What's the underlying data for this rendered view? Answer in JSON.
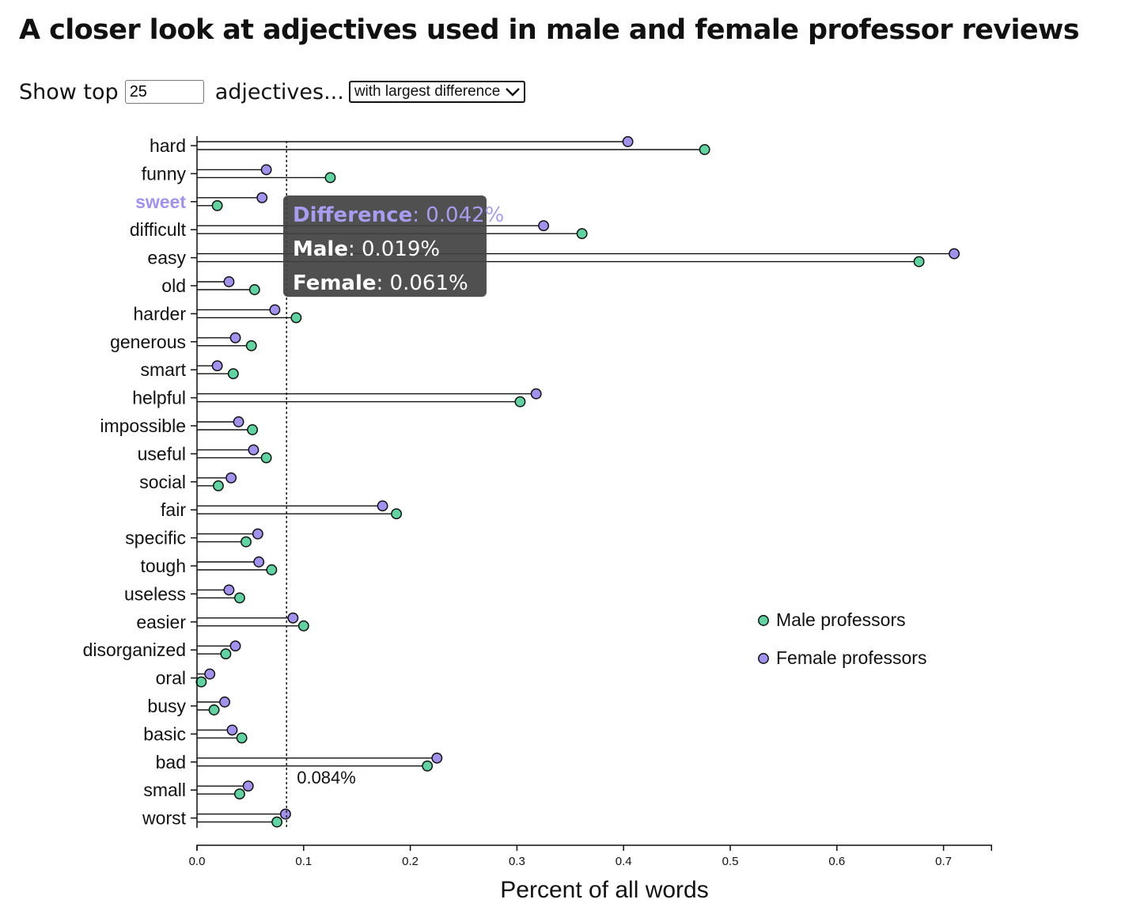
{
  "header": {
    "title": "A closer look at adjectives used in male and female professor reviews"
  },
  "controls": {
    "show_top_label": "Show top",
    "top_value": "25",
    "adjectives_label": "adjectives...",
    "sort_selected": "with largest difference"
  },
  "tooltip": {
    "diff_label": "Difference",
    "diff_value": ": 0.042%",
    "male_label": "Male",
    "male_value": ": 0.019%",
    "female_label": "Female",
    "female_value": ": 0.061%"
  },
  "colors": {
    "male": "#5fd3a0",
    "female": "#a391ee",
    "highlight_label": "#a391ee"
  },
  "chart_data": {
    "type": "dot-plot",
    "xlabel": "Percent of all words",
    "ylabel": "",
    "xlim": [
      0,
      0.745
    ],
    "xticks": [
      0.0,
      0.1,
      0.2,
      0.3,
      0.4,
      0.5,
      0.6,
      0.7
    ],
    "xtick_labels": [
      "0.0",
      "0.1",
      "0.2",
      "0.3",
      "0.4",
      "0.5",
      "0.6",
      "0.7"
    ],
    "grid": false,
    "legend_position": "right",
    "highlighted_category": "sweet",
    "reference_line": {
      "value": 0.084,
      "label": "0.084%"
    },
    "categories": [
      "hard",
      "funny",
      "sweet",
      "difficult",
      "easy",
      "old",
      "harder",
      "generous",
      "smart",
      "helpful",
      "impossible",
      "useful",
      "social",
      "fair",
      "specific",
      "tough",
      "useless",
      "easier",
      "disorganized",
      "oral",
      "busy",
      "basic",
      "bad",
      "small",
      "worst"
    ],
    "series": [
      {
        "name": "Female professors",
        "values": [
          0.404,
          0.065,
          0.061,
          0.325,
          0.71,
          0.03,
          0.073,
          0.036,
          0.019,
          0.318,
          0.039,
          0.053,
          0.032,
          0.174,
          0.057,
          0.058,
          0.03,
          0.09,
          0.036,
          0.012,
          0.026,
          0.033,
          0.225,
          0.048,
          0.083
        ]
      },
      {
        "name": "Male professors",
        "values": [
          0.476,
          0.125,
          0.019,
          0.361,
          0.677,
          0.054,
          0.093,
          0.051,
          0.034,
          0.303,
          0.052,
          0.065,
          0.02,
          0.187,
          0.046,
          0.07,
          0.04,
          0.1,
          0.027,
          0.004,
          0.016,
          0.042,
          0.216,
          0.04,
          0.075
        ]
      }
    ]
  }
}
